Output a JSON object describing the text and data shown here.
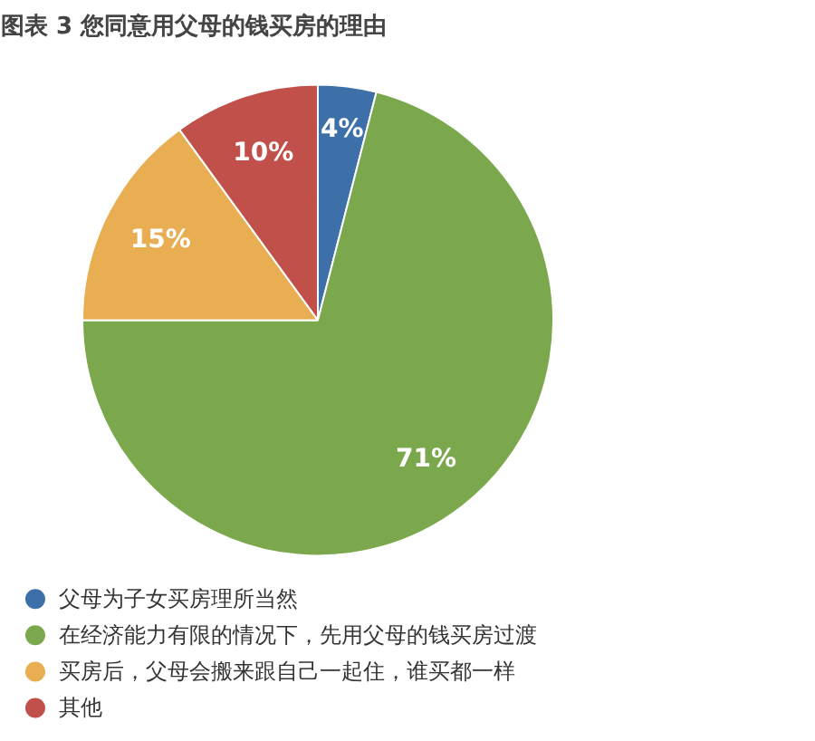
{
  "chart_data": {
    "type": "pie",
    "title": "图表 3 您同意用父母的钱买房的理由",
    "categories": [
      "父母为子女买房理所当然",
      "在经济能力有限的情况下，先用父母的钱买房过渡",
      "买房后，父母会搬来跟自己一起住，谁买都一样",
      "其他"
    ],
    "values": [
      4,
      71,
      15,
      10
    ],
    "colors": [
      "#3d6fa8",
      "#7ba84c",
      "#e9ae52",
      "#c1504b"
    ],
    "value_labels": [
      "4%",
      "71%",
      "15%",
      "10%"
    ],
    "legend": "bottom"
  }
}
